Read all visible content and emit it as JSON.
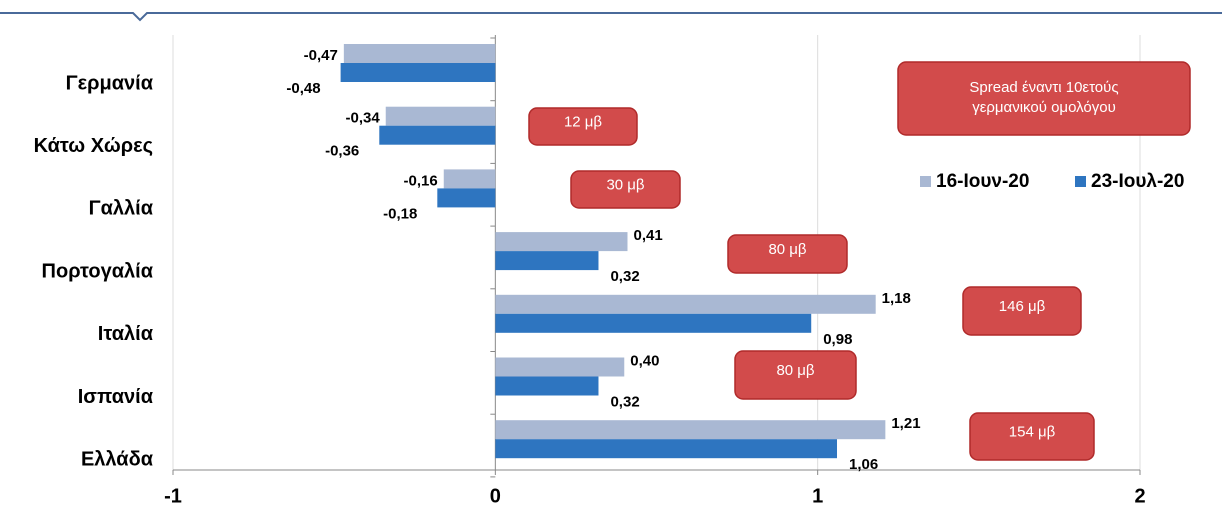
{
  "chart_data": {
    "type": "hbar",
    "categories": [
      "Γερμανία",
      "Κάτω Χώρες",
      "Γαλλία",
      "Πορτογαλία",
      "Ιταλία",
      "Ισπανία",
      "Ελλάδα"
    ],
    "series": [
      {
        "name": "16-Ιουν-20",
        "color": "#a9b8d3",
        "values": [
          -0.47,
          -0.34,
          -0.16,
          0.41,
          1.18,
          0.4,
          1.21
        ],
        "value_labels": [
          "-0,47",
          "-0,34",
          "-0,16",
          "0,41",
          "1,18",
          "0,40",
          "1,21"
        ]
      },
      {
        "name": "23-Ιουλ-20",
        "color": "#2e75c0",
        "values": [
          -0.48,
          -0.36,
          -0.18,
          0.32,
          0.98,
          0.32,
          1.06
        ],
        "value_labels": [
          "-0,48",
          "-0,36",
          "-0,18",
          "0,32",
          "0,98",
          "0,32",
          "1,06"
        ]
      }
    ],
    "xlim": [
      -1,
      2
    ],
    "xticks": [
      -1,
      0,
      1,
      2
    ],
    "grid": true,
    "legend": "right",
    "spread_note": [
      "Spread έναντι 10ετούς",
      "γερμανικού ομολόγου"
    ],
    "annotations": [
      "12 μβ",
      "30 μβ",
      "80 μβ",
      "146 μβ",
      "80 μβ",
      "154 μβ"
    ]
  }
}
